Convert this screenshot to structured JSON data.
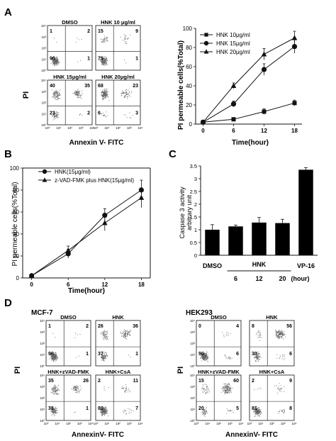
{
  "panel_labels": {
    "a": "A",
    "b": "B",
    "c": "C",
    "d": "D"
  },
  "colors": {
    "ink": "#111111",
    "bar": "#000000",
    "dots": "#666666",
    "dense": "#333333"
  },
  "axis_labels": {
    "flow_pi": "PI",
    "flow_annexin_a": "Annexin V- FITC",
    "flow_annexin_d": "AnnexinV- FITC",
    "pi_permeable": "PI permeable cells(%Total)",
    "time_hour": "Time(hour)",
    "caspase_line1": "Caspase 3 activity",
    "caspase_line2": "arbitrary unit"
  },
  "panel_a_flow": [
    {
      "title": "DMSO",
      "ul": "1",
      "ur": "2",
      "ll": "96",
      "lr": "1"
    },
    {
      "title": "HNK 10 μg/ml",
      "ul": "15",
      "ur": "9",
      "ll": "75",
      "lr": "1"
    },
    {
      "title": "HNK 15μg/ml",
      "ul": "40",
      "ur": "35",
      "ll": "23",
      "lr": "2"
    },
    {
      "title": "HNK 20μg/ml",
      "ul": "68",
      "ur": "23",
      "ll": "6",
      "lr": "3"
    }
  ],
  "panel_d": {
    "mcf7_title": "MCF-7",
    "hek_title": "HEK293",
    "mcf7": [
      {
        "title": "DMSO",
        "ul": "1",
        "ur": "2",
        "ll": "96",
        "lr": "1"
      },
      {
        "title": "HNK",
        "ul": "26",
        "ur": "36",
        "ll": "37",
        "lr": "1"
      },
      {
        "title": "HNK+zVAD-FMK",
        "ul": "35",
        "ur": "26",
        "ll": "38",
        "lr": "1"
      },
      {
        "title": "HNK+CsA",
        "ul": "2",
        "ur": "11",
        "ll": "80",
        "lr": "7"
      }
    ],
    "hek293": [
      {
        "title": "DMSO",
        "ul": "0",
        "ur": "4",
        "ll": "90",
        "lr": "6"
      },
      {
        "title": "HNK",
        "ul": "8",
        "ur": "56",
        "ll": "30",
        "lr": "6"
      },
      {
        "title": "HNK+zVAD-FMK",
        "ul": "15",
        "ur": "60",
        "ll": "20",
        "lr": "5"
      },
      {
        "title": "HNK+CsA",
        "ul": "2",
        "ur": "9",
        "ll": "81",
        "lr": "8"
      }
    ]
  },
  "flow_axis_ticks": [
    "10⁰",
    "10¹",
    "10²",
    "10³",
    "10⁴"
  ],
  "chart_data": [
    {
      "id": "A",
      "type": "line",
      "x": [
        0,
        6,
        12,
        18
      ],
      "xticks": [
        "0",
        "6",
        "12",
        "18"
      ],
      "yticks": [
        "0",
        "20",
        "40",
        "60",
        "80",
        "100"
      ],
      "xlabel": "Time(hour)",
      "ylabel": "PI permeable cells(%Total)",
      "ylim": [
        0,
        100
      ],
      "legend_position": "top-right",
      "series": [
        {
          "name": "HNK 10μg/ml",
          "marker": "square",
          "values": [
            2,
            5,
            13,
            22
          ],
          "errors": [
            1,
            1,
            3,
            3
          ]
        },
        {
          "name": "HNK 15μg/ml",
          "marker": "circle",
          "values": [
            2,
            21,
            57,
            81
          ],
          "errors": [
            1,
            3,
            6,
            7
          ]
        },
        {
          "name": "HNK 20μg/ml",
          "marker": "triangle",
          "values": [
            2,
            40,
            73,
            90
          ],
          "errors": [
            1,
            3,
            6,
            7
          ]
        }
      ]
    },
    {
      "id": "B",
      "type": "line",
      "x": [
        0,
        6,
        12,
        18
      ],
      "xticks": [
        "0",
        "6",
        "12",
        "18"
      ],
      "yticks": [
        "0",
        "20",
        "40",
        "60",
        "80",
        "100"
      ],
      "xlabel": "Time(hour)",
      "ylabel": "PI permeable cells(%Total)",
      "ylim": [
        0,
        100
      ],
      "legend_position": "top-left",
      "series": [
        {
          "name": "HNK(15μg/ml)",
          "marker": "circle",
          "values": [
            2,
            22,
            57,
            80
          ],
          "errors": [
            1,
            4,
            6,
            9
          ]
        },
        {
          "name": "z-VAD-FMK plus HNK(15μg/ml)",
          "marker": "triangle",
          "values": [
            2,
            25,
            50,
            73
          ],
          "errors": [
            1,
            4,
            7,
            9
          ]
        }
      ]
    },
    {
      "id": "C",
      "type": "bar",
      "categories": [
        "DMSO",
        "6",
        "12",
        "20",
        "VP-16"
      ],
      "values": [
        1.0,
        1.13,
        1.28,
        1.26,
        3.35
      ],
      "errors": [
        0.2,
        0.05,
        0.2,
        0.15,
        0.08
      ],
      "group_label": "HNK",
      "group_unit": "(hour)",
      "yticks": [
        "0",
        "0.5",
        "1",
        "1.5",
        "2",
        "2.5",
        "3",
        "3.5"
      ],
      "ylim": [
        0,
        3.5
      ],
      "ylabel": "Caspase 3 activity arbitrary unit"
    }
  ]
}
